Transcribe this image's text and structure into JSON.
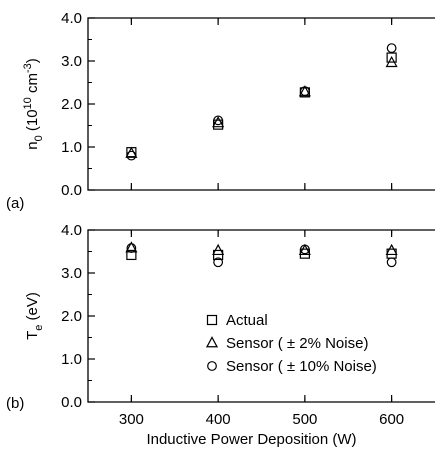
{
  "chart_data": [
    {
      "type": "scatter",
      "panel_label": "(a)",
      "xlim": [
        250,
        650
      ],
      "ylim": [
        0.0,
        4.0
      ],
      "x_ticks": [
        300,
        400,
        500,
        600
      ],
      "y_ticks": [
        "0.0",
        "1.0",
        "2.0",
        "3.0",
        "4.0"
      ],
      "ylabel": {
        "base": "n",
        "sub": "0",
        "pre": " (10",
        "sup1": "10",
        "mid": " cm",
        "sup2": "-3",
        "post": ")"
      },
      "grid": false,
      "series": [
        {
          "name": "Actual",
          "marker": "square",
          "x": [
            300,
            400,
            500,
            600
          ],
          "y": [
            0.88,
            1.52,
            2.27,
            3.08
          ]
        },
        {
          "name": "Sensor ( ± 2% Noise)",
          "marker": "triangle",
          "x": [
            300,
            400,
            500,
            600
          ],
          "y": [
            0.85,
            1.56,
            2.28,
            2.96
          ]
        },
        {
          "name": "Sensor ( ± 10% Noise)",
          "marker": "circle",
          "x": [
            300,
            400,
            500,
            600
          ],
          "y": [
            0.8,
            1.62,
            2.3,
            3.3
          ]
        }
      ]
    },
    {
      "type": "scatter",
      "panel_label": "(b)",
      "xlim": [
        250,
        650
      ],
      "ylim": [
        0.0,
        4.0
      ],
      "x_ticks": [
        "300",
        "400",
        "500",
        "600"
      ],
      "y_ticks": [
        "0.0",
        "1.0",
        "2.0",
        "3.0",
        "4.0"
      ],
      "ylabel": {
        "base": "T",
        "sub": "e",
        "post": " (eV)"
      },
      "xlabel": "Inductive Power Deposition (W)",
      "grid": false,
      "legend_position": "lower-right",
      "series": [
        {
          "name": "Actual",
          "marker": "square",
          "x": [
            300,
            400,
            500,
            600
          ],
          "y": [
            3.42,
            3.42,
            3.45,
            3.45
          ]
        },
        {
          "name": "Sensor ( ± 2% Noise)",
          "marker": "triangle",
          "x": [
            300,
            400,
            500,
            600
          ],
          "y": [
            3.58,
            3.52,
            3.52,
            3.52
          ]
        },
        {
          "name": "Sensor ( ± 10% Noise)",
          "marker": "circle",
          "x": [
            300,
            400,
            500,
            600
          ],
          "y": [
            3.58,
            3.25,
            3.55,
            3.25
          ]
        }
      ]
    }
  ],
  "legend": {
    "items": [
      {
        "marker": "square",
        "label": "Actual"
      },
      {
        "marker": "triangle",
        "label": "Sensor ( ± 2% Noise)"
      },
      {
        "marker": "circle",
        "label": "Sensor ( ± 10% Noise)"
      }
    ]
  }
}
